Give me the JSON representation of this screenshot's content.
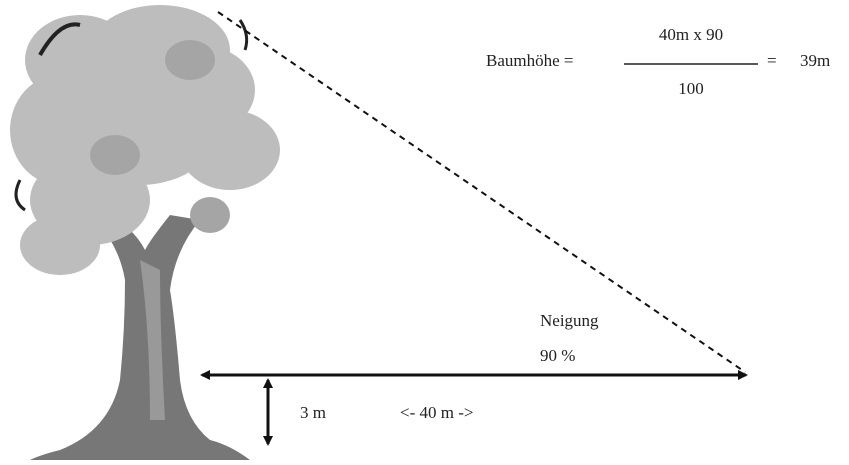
{
  "formula": {
    "label": "Baumhöhe =",
    "numerator": "40m x 90",
    "denominator": "100",
    "equals": "=",
    "result": "39m"
  },
  "slope": {
    "label": "Neigung",
    "value": "90 %"
  },
  "measurements": {
    "height_offset": "3 m",
    "distance": "<- 40 m ->"
  }
}
